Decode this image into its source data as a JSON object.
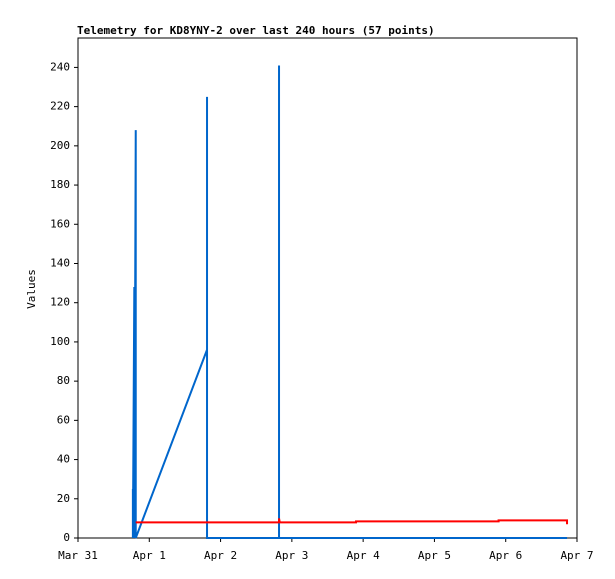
{
  "chart_data": {
    "type": "line",
    "title": "Telemetry for KD8YNY-2 over last 240 hours (57 points)",
    "ylabel": "Values",
    "xlim": [
      0,
      7
    ],
    "ylim": [
      0,
      255
    ],
    "xticks": [
      {
        "value": 0,
        "label": "Mar 31"
      },
      {
        "value": 1,
        "label": "Apr 1"
      },
      {
        "value": 2,
        "label": "Apr 2"
      },
      {
        "value": 3,
        "label": "Apr 3"
      },
      {
        "value": 4,
        "label": "Apr 4"
      },
      {
        "value": 5,
        "label": "Apr 5"
      },
      {
        "value": 6,
        "label": "Apr 6"
      },
      {
        "value": 7,
        "label": "Apr 7"
      }
    ],
    "yticks": [
      0,
      20,
      40,
      60,
      80,
      100,
      120,
      140,
      160,
      180,
      200,
      220,
      240
    ],
    "series": [
      {
        "color": "#0066cc",
        "x": [
          0.77,
          0.77,
          0.77,
          0.79,
          0.79,
          0.81,
          0.81,
          1.81,
          1.81,
          1.81,
          2.82,
          2.82,
          2.82,
          6.86
        ],
        "values": [
          0,
          25,
          0,
          128,
          0,
          208,
          0,
          96,
          225,
          0,
          0,
          241,
          0,
          0
        ]
      },
      {
        "color": "#ff0000",
        "x": [
          0.81,
          1.81,
          2.82,
          2.82,
          2.83,
          3.9,
          3.9,
          5.9,
          5.9,
          6.86,
          6.86
        ],
        "values": [
          8,
          8,
          8,
          10,
          8,
          8,
          8.5,
          8.5,
          9,
          9,
          7
        ]
      }
    ]
  }
}
